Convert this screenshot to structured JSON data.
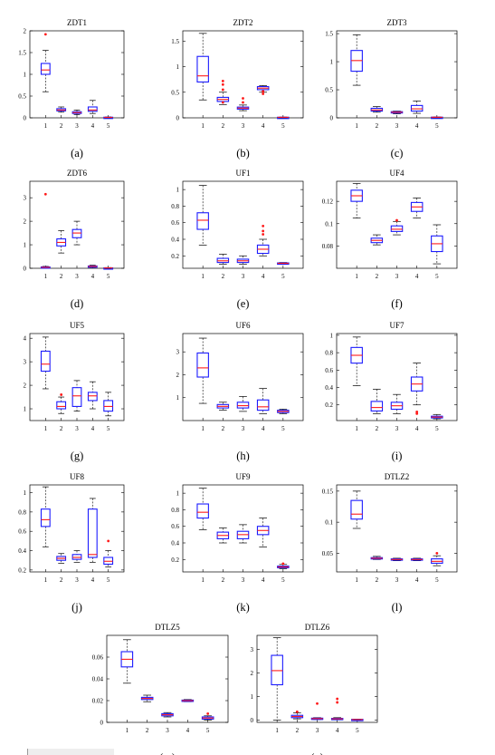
{
  "chart_data": [
    {
      "type": "box",
      "title": "ZDT1",
      "caption": "(a)",
      "categories": [
        "1",
        "2",
        "3",
        "4",
        "5"
      ],
      "ylim": [
        0,
        2
      ],
      "yticks": [
        0,
        0.5,
        1,
        1.5,
        2
      ],
      "yticklabels": [
        "0",
        "0.5",
        "1",
        "1.5",
        "2"
      ],
      "boxes": [
        {
          "min": 0.6,
          "q1": 1.0,
          "median": 1.1,
          "q3": 1.25,
          "max": 1.55,
          "outliers": [
            1.92
          ]
        },
        {
          "min": 0.13,
          "q1": 0.16,
          "median": 0.18,
          "q3": 0.21,
          "max": 0.25,
          "outliers": []
        },
        {
          "min": 0.07,
          "q1": 0.1,
          "median": 0.12,
          "q3": 0.14,
          "max": 0.18,
          "outliers": []
        },
        {
          "min": 0.1,
          "q1": 0.15,
          "median": 0.18,
          "q3": 0.25,
          "max": 0.4,
          "outliers": []
        },
        {
          "min": 0.0,
          "q1": 0.005,
          "median": 0.01,
          "q3": 0.015,
          "max": 0.02,
          "outliers": []
        }
      ]
    },
    {
      "type": "box",
      "title": "ZDT2",
      "caption": "(b)",
      "categories": [
        "1",
        "2",
        "3",
        "4",
        "5"
      ],
      "ylim": [
        0,
        1.7
      ],
      "yticks": [
        0,
        0.5,
        1,
        1.5
      ],
      "yticklabels": [
        "0",
        "0.5",
        "1",
        "1.5"
      ],
      "boxes": [
        {
          "min": 0.35,
          "q1": 0.7,
          "median": 0.82,
          "q3": 1.2,
          "max": 1.65,
          "outliers": []
        },
        {
          "min": 0.26,
          "q1": 0.32,
          "median": 0.36,
          "q3": 0.4,
          "max": 0.5,
          "outliers": [
            0.55,
            0.65,
            0.72,
            0.3
          ]
        },
        {
          "min": 0.14,
          "q1": 0.17,
          "median": 0.19,
          "q3": 0.21,
          "max": 0.25,
          "outliers": [
            0.3,
            0.38
          ]
        },
        {
          "min": 0.5,
          "q1": 0.55,
          "median": 0.58,
          "q3": 0.61,
          "max": 0.63,
          "outliers": [
            0.47,
            0.52
          ]
        },
        {
          "min": 0.0,
          "q1": 0.005,
          "median": 0.01,
          "q3": 0.012,
          "max": 0.015,
          "outliers": []
        }
      ]
    },
    {
      "type": "box",
      "title": "ZDT3",
      "caption": "(c)",
      "categories": [
        "1",
        "2",
        "3",
        "4",
        "5"
      ],
      "ylim": [
        0,
        1.55
      ],
      "yticks": [
        0,
        0.5,
        1,
        1.5
      ],
      "yticklabels": [
        "0",
        "0.5",
        "1",
        "1.5"
      ],
      "boxes": [
        {
          "min": 0.58,
          "q1": 0.83,
          "median": 1.02,
          "q3": 1.2,
          "max": 1.48,
          "outliers": []
        },
        {
          "min": 0.1,
          "q1": 0.12,
          "median": 0.14,
          "q3": 0.17,
          "max": 0.2,
          "outliers": []
        },
        {
          "min": 0.07,
          "q1": 0.09,
          "median": 0.1,
          "q3": 0.11,
          "max": 0.12,
          "outliers": []
        },
        {
          "min": 0.08,
          "q1": 0.12,
          "median": 0.16,
          "q3": 0.22,
          "max": 0.3,
          "outliers": []
        },
        {
          "min": 0.0,
          "q1": 0.005,
          "median": 0.01,
          "q3": 0.012,
          "max": 0.015,
          "outliers": []
        }
      ]
    },
    {
      "type": "box",
      "title": "ZDT6",
      "caption": "(d)",
      "categories": [
        "1",
        "2",
        "3",
        "4",
        "5"
      ],
      "ylim": [
        0,
        3.7
      ],
      "yticks": [
        0,
        1,
        2,
        3
      ],
      "yticklabels": [
        "0",
        "1",
        "2",
        "3"
      ],
      "boxes": [
        {
          "min": 0.0,
          "q1": 0.02,
          "median": 0.04,
          "q3": 0.06,
          "max": 0.08,
          "outliers": [
            3.15
          ]
        },
        {
          "min": 0.65,
          "q1": 0.95,
          "median": 1.1,
          "q3": 1.25,
          "max": 1.6,
          "outliers": []
        },
        {
          "min": 1.0,
          "q1": 1.3,
          "median": 1.5,
          "q3": 1.65,
          "max": 2.0,
          "outliers": []
        },
        {
          "min": 0.03,
          "q1": 0.06,
          "median": 0.08,
          "q3": 0.1,
          "max": 0.13,
          "outliers": []
        },
        {
          "min": 0.0,
          "q1": 0.01,
          "median": 0.015,
          "q3": 0.02,
          "max": 0.03,
          "outliers": []
        }
      ]
    },
    {
      "type": "box",
      "title": "UF1",
      "caption": "(e)",
      "categories": [
        "1",
        "2",
        "3",
        "4",
        "5"
      ],
      "ylim": [
        0.05,
        1.1
      ],
      "yticks": [
        0.2,
        0.4,
        0.6,
        0.8,
        1
      ],
      "yticklabels": [
        "0.2",
        "0.4",
        "0.6",
        "0.8",
        "1"
      ],
      "boxes": [
        {
          "min": 0.33,
          "q1": 0.52,
          "median": 0.63,
          "q3": 0.72,
          "max": 1.05,
          "outliers": []
        },
        {
          "min": 0.1,
          "q1": 0.12,
          "median": 0.14,
          "q3": 0.17,
          "max": 0.22,
          "outliers": []
        },
        {
          "min": 0.1,
          "q1": 0.12,
          "median": 0.14,
          "q3": 0.16,
          "max": 0.2,
          "outliers": []
        },
        {
          "min": 0.2,
          "q1": 0.23,
          "median": 0.28,
          "q3": 0.33,
          "max": 0.4,
          "outliers": [
            0.46,
            0.5,
            0.56
          ]
        },
        {
          "min": 0.1,
          "q1": 0.105,
          "median": 0.11,
          "q3": 0.115,
          "max": 0.12,
          "outliers": []
        }
      ]
    },
    {
      "type": "box",
      "title": "UF4",
      "caption": "(f)",
      "categories": [
        "1",
        "2",
        "3",
        "4",
        "5"
      ],
      "ylim": [
        0.06,
        0.138
      ],
      "yticks": [
        0.08,
        0.1,
        0.12
      ],
      "yticklabels": [
        "0.08",
        "0.1",
        "0.12"
      ],
      "boxes": [
        {
          "min": 0.105,
          "q1": 0.12,
          "median": 0.125,
          "q3": 0.13,
          "max": 0.136,
          "outliers": []
        },
        {
          "min": 0.081,
          "q1": 0.083,
          "median": 0.085,
          "q3": 0.087,
          "max": 0.09,
          "outliers": []
        },
        {
          "min": 0.09,
          "q1": 0.093,
          "median": 0.095,
          "q3": 0.098,
          "max": 0.102,
          "outliers": [
            0.103
          ]
        },
        {
          "min": 0.105,
          "q1": 0.111,
          "median": 0.115,
          "q3": 0.119,
          "max": 0.123,
          "outliers": []
        },
        {
          "min": 0.064,
          "q1": 0.075,
          "median": 0.082,
          "q3": 0.089,
          "max": 0.099,
          "outliers": []
        }
      ]
    },
    {
      "type": "box",
      "title": "UF5",
      "caption": "(g)",
      "categories": [
        "1",
        "2",
        "3",
        "4",
        "5"
      ],
      "ylim": [
        0.5,
        4.2
      ],
      "yticks": [
        1,
        2,
        3,
        4
      ],
      "yticklabels": [
        "1",
        "2",
        "3",
        "4"
      ],
      "boxes": [
        {
          "min": 1.85,
          "q1": 2.6,
          "median": 2.9,
          "q3": 3.45,
          "max": 4.05,
          "outliers": []
        },
        {
          "min": 0.8,
          "q1": 1.0,
          "median": 1.1,
          "q3": 1.3,
          "max": 1.5,
          "outliers": [
            1.6
          ]
        },
        {
          "min": 0.9,
          "q1": 1.1,
          "median": 1.55,
          "q3": 1.9,
          "max": 2.2,
          "outliers": []
        },
        {
          "min": 1.0,
          "q1": 1.35,
          "median": 1.55,
          "q3": 1.7,
          "max": 2.15,
          "outliers": []
        },
        {
          "min": 0.7,
          "q1": 0.9,
          "median": 1.1,
          "q3": 1.35,
          "max": 1.7,
          "outliers": []
        }
      ]
    },
    {
      "type": "box",
      "title": "UF6",
      "caption": "(h)",
      "categories": [
        "1",
        "2",
        "3",
        "4",
        "5"
      ],
      "ylim": [
        0,
        3.8
      ],
      "yticks": [
        1,
        2,
        3
      ],
      "yticklabels": [
        "1",
        "2",
        "3"
      ],
      "boxes": [
        {
          "min": 0.75,
          "q1": 1.9,
          "median": 2.3,
          "q3": 2.95,
          "max": 3.6,
          "outliers": []
        },
        {
          "min": 0.45,
          "q1": 0.55,
          "median": 0.62,
          "q3": 0.7,
          "max": 0.8,
          "outliers": []
        },
        {
          "min": 0.4,
          "q1": 0.55,
          "median": 0.65,
          "q3": 0.8,
          "max": 1.05,
          "outliers": []
        },
        {
          "min": 0.3,
          "q1": 0.45,
          "median": 0.6,
          "q3": 0.9,
          "max": 1.4,
          "outliers": []
        },
        {
          "min": 0.3,
          "q1": 0.35,
          "median": 0.4,
          "q3": 0.45,
          "max": 0.5,
          "outliers": []
        }
      ]
    },
    {
      "type": "box",
      "title": "UF7",
      "caption": "(i)",
      "categories": [
        "1",
        "2",
        "3",
        "4",
        "5"
      ],
      "ylim": [
        0.02,
        1.02
      ],
      "yticks": [
        0.2,
        0.4,
        0.6,
        0.8,
        1
      ],
      "yticklabels": [
        "0.2",
        "0.4",
        "0.6",
        "0.8",
        "1"
      ],
      "boxes": [
        {
          "min": 0.42,
          "q1": 0.68,
          "median": 0.77,
          "q3": 0.86,
          "max": 0.98,
          "outliers": []
        },
        {
          "min": 0.1,
          "q1": 0.13,
          "median": 0.17,
          "q3": 0.24,
          "max": 0.38,
          "outliers": []
        },
        {
          "min": 0.1,
          "q1": 0.15,
          "median": 0.19,
          "q3": 0.23,
          "max": 0.32,
          "outliers": []
        },
        {
          "min": 0.2,
          "q1": 0.36,
          "median": 0.44,
          "q3": 0.52,
          "max": 0.68,
          "outliers": [
            0.1,
            0.12
          ]
        },
        {
          "min": 0.04,
          "q1": 0.05,
          "median": 0.06,
          "q3": 0.07,
          "max": 0.09,
          "outliers": []
        }
      ]
    },
    {
      "type": "box",
      "title": "UF8",
      "caption": "(j)",
      "categories": [
        "1",
        "2",
        "3",
        "4",
        "5"
      ],
      "ylim": [
        0.18,
        1.08
      ],
      "yticks": [
        0.2,
        0.4,
        0.6,
        0.8,
        1
      ],
      "yticklabels": [
        "0.2",
        "0.4",
        "0.6",
        "0.8",
        "1"
      ],
      "boxes": [
        {
          "min": 0.44,
          "q1": 0.65,
          "median": 0.72,
          "q3": 0.83,
          "max": 1.06,
          "outliers": []
        },
        {
          "min": 0.27,
          "q1": 0.3,
          "median": 0.32,
          "q3": 0.34,
          "max": 0.37,
          "outliers": []
        },
        {
          "min": 0.28,
          "q1": 0.31,
          "median": 0.33,
          "q3": 0.36,
          "max": 0.4,
          "outliers": []
        },
        {
          "min": 0.28,
          "q1": 0.33,
          "median": 0.36,
          "q3": 0.83,
          "max": 0.94,
          "outliers": []
        },
        {
          "min": 0.23,
          "q1": 0.26,
          "median": 0.29,
          "q3": 0.33,
          "max": 0.4,
          "outliers": [
            0.5
          ]
        }
      ]
    },
    {
      "type": "box",
      "title": "UF9",
      "caption": "(k)",
      "categories": [
        "1",
        "2",
        "3",
        "4",
        "5"
      ],
      "ylim": [
        0.05,
        1.1
      ],
      "yticks": [
        0.2,
        0.4,
        0.6,
        0.8,
        1
      ],
      "yticklabels": [
        "0.2",
        "0.4",
        "0.6",
        "0.8",
        "1"
      ],
      "boxes": [
        {
          "min": 0.56,
          "q1": 0.7,
          "median": 0.77,
          "q3": 0.87,
          "max": 1.06,
          "outliers": []
        },
        {
          "min": 0.4,
          "q1": 0.45,
          "median": 0.49,
          "q3": 0.53,
          "max": 0.58,
          "outliers": []
        },
        {
          "min": 0.4,
          "q1": 0.45,
          "median": 0.5,
          "q3": 0.54,
          "max": 0.62,
          "outliers": []
        },
        {
          "min": 0.35,
          "q1": 0.5,
          "median": 0.55,
          "q3": 0.6,
          "max": 0.7,
          "outliers": []
        },
        {
          "min": 0.09,
          "q1": 0.1,
          "median": 0.11,
          "q3": 0.12,
          "max": 0.14,
          "outliers": [
            0.15
          ]
        }
      ]
    },
    {
      "type": "box",
      "title": "DTLZ2",
      "caption": "(l)",
      "categories": [
        "1",
        "2",
        "3",
        "4",
        "5"
      ],
      "ylim": [
        0.02,
        0.16
      ],
      "yticks": [
        0.05,
        0.1,
        0.15
      ],
      "yticklabels": [
        "0.05",
        "0.1",
        "0.15"
      ],
      "boxes": [
        {
          "min": 0.09,
          "q1": 0.105,
          "median": 0.113,
          "q3": 0.135,
          "max": 0.15,
          "outliers": []
        },
        {
          "min": 0.04,
          "q1": 0.041,
          "median": 0.042,
          "q3": 0.043,
          "max": 0.045,
          "outliers": []
        },
        {
          "min": 0.038,
          "q1": 0.039,
          "median": 0.04,
          "q3": 0.041,
          "max": 0.042,
          "outliers": []
        },
        {
          "min": 0.038,
          "q1": 0.039,
          "median": 0.04,
          "q3": 0.041,
          "max": 0.042,
          "outliers": []
        },
        {
          "min": 0.03,
          "q1": 0.034,
          "median": 0.037,
          "q3": 0.041,
          "max": 0.046,
          "outliers": [
            0.05
          ]
        }
      ]
    },
    {
      "type": "box",
      "title": "DTLZ5",
      "caption": "(m)",
      "categories": [
        "1",
        "2",
        "3",
        "4",
        "5"
      ],
      "ylim": [
        0,
        0.08
      ],
      "yticks": [
        0,
        0.02,
        0.04,
        0.06
      ],
      "yticklabels": [
        "0",
        "0.02",
        "0.04",
        "0.06"
      ],
      "boxes": [
        {
          "min": 0.036,
          "q1": 0.051,
          "median": 0.058,
          "q3": 0.065,
          "max": 0.076,
          "outliers": []
        },
        {
          "min": 0.019,
          "q1": 0.021,
          "median": 0.022,
          "q3": 0.023,
          "max": 0.025,
          "outliers": []
        },
        {
          "min": 0.005,
          "q1": 0.006,
          "median": 0.007,
          "q3": 0.008,
          "max": 0.009,
          "outliers": []
        },
        {
          "min": 0.019,
          "q1": 0.0195,
          "median": 0.02,
          "q3": 0.0205,
          "max": 0.021,
          "outliers": []
        },
        {
          "min": 0.002,
          "q1": 0.003,
          "median": 0.004,
          "q3": 0.005,
          "max": 0.006,
          "outliers": [
            0.008
          ]
        }
      ]
    },
    {
      "type": "box",
      "title": "DTLZ6",
      "caption": "(n)",
      "categories": [
        "1",
        "2",
        "3",
        "4",
        "5"
      ],
      "ylim": [
        -0.1,
        3.6
      ],
      "yticks": [
        0,
        1,
        2,
        3
      ],
      "yticklabels": [
        "0",
        "1",
        "2",
        "3"
      ],
      "boxes": [
        {
          "min": 0.0,
          "q1": 1.5,
          "median": 2.1,
          "q3": 2.75,
          "max": 3.5,
          "outliers": []
        },
        {
          "min": 0.05,
          "q1": 0.1,
          "median": 0.15,
          "q3": 0.2,
          "max": 0.3,
          "outliers": [
            0.35
          ]
        },
        {
          "min": 0.02,
          "q1": 0.04,
          "median": 0.06,
          "q3": 0.08,
          "max": 0.1,
          "outliers": [
            0.7
          ]
        },
        {
          "min": 0.02,
          "q1": 0.04,
          "median": 0.05,
          "q3": 0.07,
          "max": 0.1,
          "outliers": [
            0.75,
            0.9
          ]
        },
        {
          "min": 0.0,
          "q1": 0.01,
          "median": 0.02,
          "q3": 0.03,
          "max": 0.04,
          "outliers": []
        }
      ]
    }
  ],
  "colors": {
    "box": "#1c1cff",
    "median": "#ff1a1a",
    "outlier": "#ff1a1a",
    "whisker": "#000000"
  }
}
